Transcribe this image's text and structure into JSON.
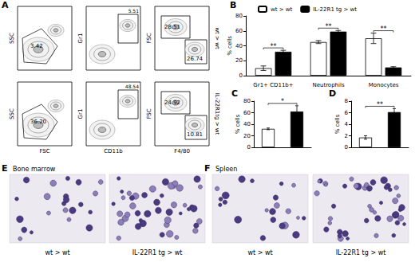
{
  "flow_cytometry": {
    "label": "A",
    "y_labels": [
      "SSC",
      "Gr1",
      "FSC"
    ],
    "x_labels": [
      "FSC",
      "CD11b",
      "F4/80"
    ],
    "rows": [
      {
        "name": "wt > wt",
        "gates": [
          [
            "3.42"
          ],
          [
            "5.51"
          ],
          [
            "28.51",
            "26.74"
          ]
        ]
      },
      {
        "name": "IL-22R1tg > wt",
        "gates": [
          [
            "36.20"
          ],
          [
            "48.54"
          ],
          [
            "24.92",
            "10.81"
          ]
        ]
      }
    ]
  },
  "chart_data": [
    {
      "type": "bar",
      "title": "B",
      "y_label": "% cells",
      "categories": [
        "Gr1+ CD11b+",
        "Neutrophils",
        "Monocytes"
      ],
      "series": [
        {
          "name": "wt > wt",
          "color": "#ffffff",
          "values": [
            10,
            45,
            50
          ],
          "errors": [
            3,
            2,
            7
          ]
        },
        {
          "name": "IL-22R1 tg > wt",
          "color": "#000000",
          "values": [
            32,
            59,
            11
          ],
          "errors": [
            2,
            1.5,
            1
          ]
        }
      ],
      "significance": [
        "**",
        "**",
        "**"
      ],
      "ylim": [
        0,
        80
      ],
      "yticks": [
        0,
        20,
        40,
        60,
        80
      ],
      "grid": false,
      "legend": "top"
    },
    {
      "type": "bar",
      "title": "C",
      "y_label": "% cells",
      "categories": [
        null,
        null
      ],
      "values": [
        32,
        62
      ],
      "errors": [
        1.5,
        10
      ],
      "colors": [
        "#ffffff",
        "#000000"
      ],
      "significance": [
        "*"
      ],
      "ylim": [
        0,
        80
      ],
      "yticks": [
        0,
        20,
        40,
        60,
        80
      ],
      "grid": false
    },
    {
      "type": "bar",
      "title": "D",
      "y_label": "% cells",
      "categories": [
        null,
        null
      ],
      "values": [
        1.7,
        6.1
      ],
      "errors": [
        0.3,
        0.6
      ],
      "colors": [
        "#ffffff",
        "#000000"
      ],
      "significance": [
        "**"
      ],
      "ylim": [
        0,
        8
      ],
      "yticks": [
        0,
        2,
        4,
        6,
        8
      ],
      "grid": false
    }
  ],
  "micrographs": [
    {
      "label": "E",
      "title": "Bone marrow",
      "captions": [
        "wt > wt",
        "IL-22R1 tg > wt"
      ]
    },
    {
      "label": "F",
      "title": "Spleen",
      "captions": [
        "wt > wt",
        "IL-22R1 tg > wt"
      ]
    }
  ]
}
